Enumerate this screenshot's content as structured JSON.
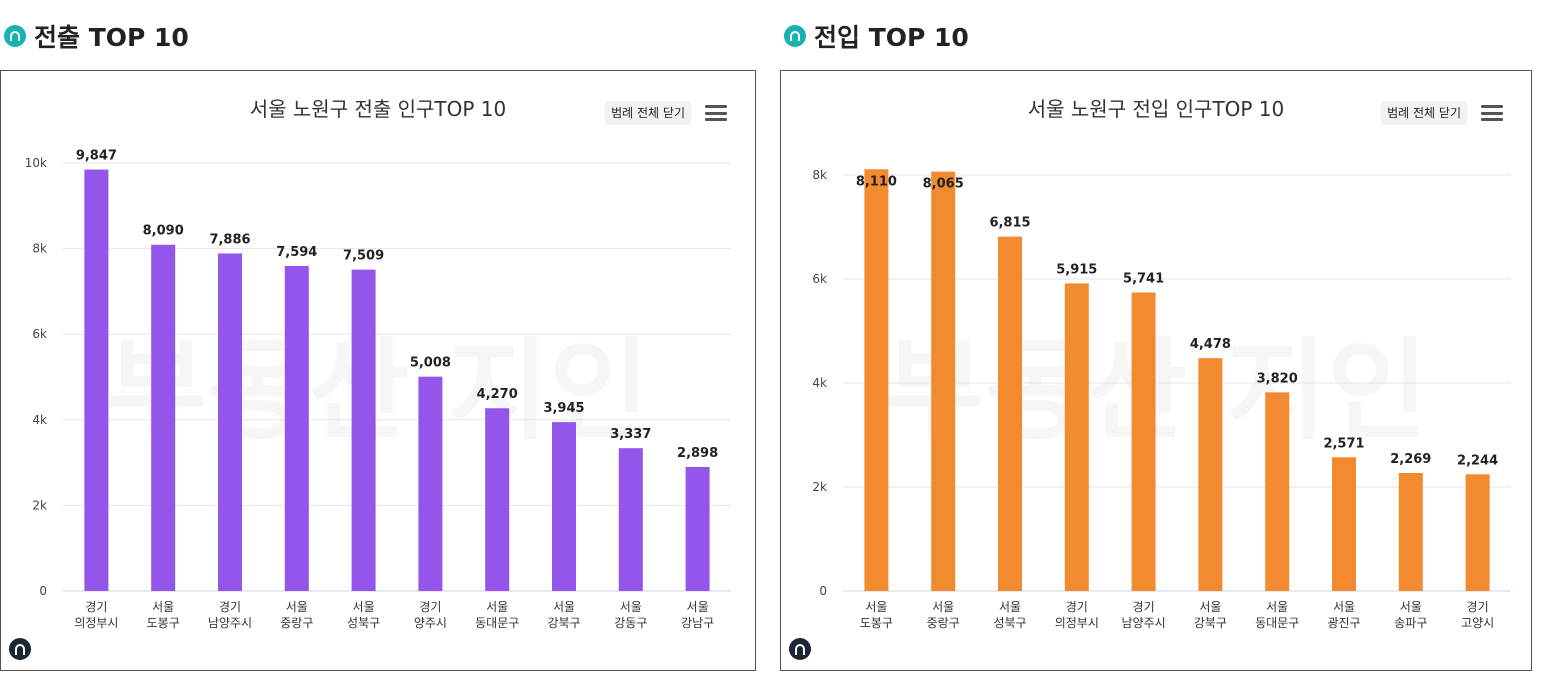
{
  "sections": [
    {
      "heading": "전출 TOP 10",
      "legend_toggle_label": "범례 전체 닫기",
      "watermark": "부동산 지인",
      "chart_data": {
        "type": "bar",
        "title": "서울 노원구 전출 인구TOP 10",
        "categories": [
          [
            "경기",
            "의정부시"
          ],
          [
            "서울",
            "도봉구"
          ],
          [
            "경기",
            "남양주시"
          ],
          [
            "서울",
            "중랑구"
          ],
          [
            "서울",
            "성북구"
          ],
          [
            "경기",
            "양주시"
          ],
          [
            "서울",
            "동대문구"
          ],
          [
            "서울",
            "강북구"
          ],
          [
            "서울",
            "강동구"
          ],
          [
            "서울",
            "강남구"
          ]
        ],
        "values": [
          9847,
          8090,
          7886,
          7594,
          7509,
          5008,
          4270,
          3945,
          3337,
          2898
        ],
        "data_labels": [
          "9,847",
          "8,090",
          "7,886",
          "7,594",
          "7,509",
          "5,008",
          "4,270",
          "3,945",
          "3,337",
          "2,898"
        ],
        "y_ticks": [
          0,
          2000,
          4000,
          6000,
          8000,
          10000
        ],
        "y_tick_labels": [
          "0",
          "2k",
          "4k",
          "6k",
          "8k",
          "10k"
        ],
        "ylim": [
          0,
          10000
        ],
        "color": "#9355ea",
        "grid": true,
        "legend": "none"
      }
    },
    {
      "heading": "전입 TOP 10",
      "legend_toggle_label": "범례 전체 닫기",
      "watermark": "부동산 지인",
      "chart_data": {
        "type": "bar",
        "title": "서울 노원구 전입 인구TOP 10",
        "categories": [
          [
            "서울",
            "도봉구"
          ],
          [
            "서울",
            "중랑구"
          ],
          [
            "서울",
            "성북구"
          ],
          [
            "경기",
            "의정부시"
          ],
          [
            "경기",
            "남양주시"
          ],
          [
            "서울",
            "강북구"
          ],
          [
            "서울",
            "동대문구"
          ],
          [
            "서울",
            "광진구"
          ],
          [
            "서울",
            "송파구"
          ],
          [
            "경기",
            "고양시"
          ]
        ],
        "values": [
          8110,
          8065,
          6815,
          5915,
          5741,
          4478,
          3820,
          2571,
          2269,
          2244
        ],
        "data_labels": [
          "8,110",
          "8,065",
          "6,815",
          "5,915",
          "5,741",
          "4,478",
          "3,820",
          "2,571",
          "2,269",
          "2,244"
        ],
        "y_ticks": [
          0,
          2000,
          4000,
          6000,
          8000
        ],
        "y_tick_labels": [
          "0",
          "2k",
          "4k",
          "6k",
          "8k"
        ],
        "ylim": [
          0,
          8200
        ],
        "color": "#f28a30",
        "grid": true,
        "legend": "none"
      }
    }
  ]
}
